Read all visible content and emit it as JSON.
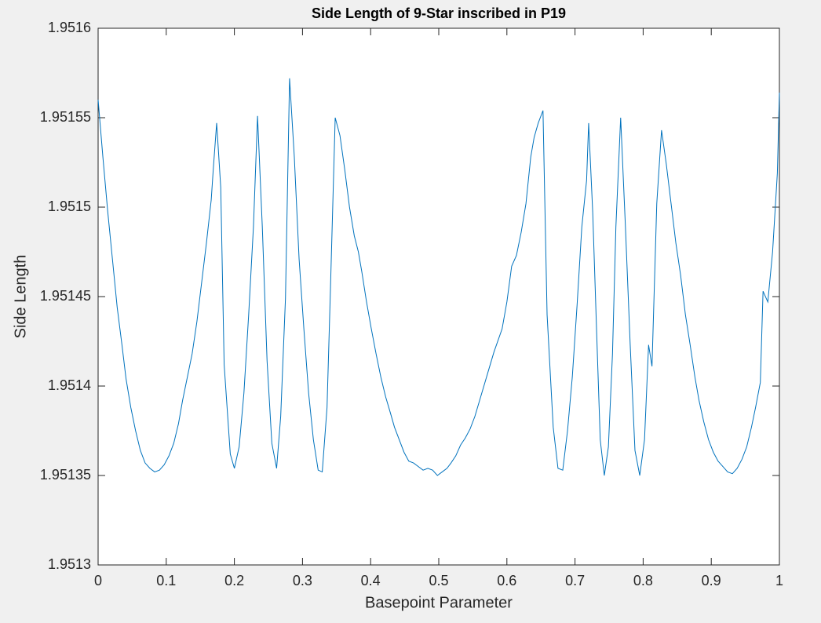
{
  "chart_data": {
    "type": "line",
    "title": "Side Length of 9-Star inscribed in P19",
    "xlabel": "Basepoint Parameter",
    "ylabel": "Side Length",
    "color": "#0072bd",
    "xlim": [
      0,
      1
    ],
    "ylim": [
      1.9513,
      1.9516
    ],
    "xticks": [
      0,
      0.1,
      0.2,
      0.3,
      0.4,
      0.5,
      0.6,
      0.7,
      0.8,
      0.9,
      1
    ],
    "yticks": [
      1.9513,
      1.95135,
      1.9514,
      1.95145,
      1.9515,
      1.95155,
      1.9516
    ],
    "grid": false,
    "x": [
      0,
      0.007,
      0.014,
      0.021,
      0.028,
      0.035,
      0.041,
      0.048,
      0.055,
      0.062,
      0.069,
      0.076,
      0.083,
      0.09,
      0.097,
      0.104,
      0.111,
      0.118,
      0.124,
      0.131,
      0.138,
      0.145,
      0.152,
      0.159,
      0.166,
      0.169,
      0.174,
      0.18,
      0.185,
      0.194,
      0.2,
      0.207,
      0.214,
      0.221,
      0.228,
      0.234,
      0.241,
      0.248,
      0.255,
      0.262,
      0.268,
      0.275,
      0.281,
      0.288,
      0.295,
      0.302,
      0.309,
      0.316,
      0.323,
      0.329,
      0.336,
      0.341,
      0.348,
      0.355,
      0.362,
      0.369,
      0.376,
      0.382,
      0.387,
      0.394,
      0.401,
      0.408,
      0.415,
      0.422,
      0.429,
      0.435,
      0.442,
      0.449,
      0.456,
      0.463,
      0.47,
      0.477,
      0.484,
      0.491,
      0.498,
      0.505,
      0.512,
      0.518,
      0.525,
      0.532,
      0.539,
      0.546,
      0.553,
      0.56,
      0.567,
      0.574,
      0.581,
      0.593,
      0.6,
      0.607,
      0.614,
      0.621,
      0.628,
      0.635,
      0.64,
      0.646,
      0.653,
      0.659,
      0.668,
      0.675,
      0.682,
      0.689,
      0.696,
      0.703,
      0.71,
      0.717,
      0.72,
      0.726,
      0.732,
      0.737,
      0.743,
      0.749,
      0.755,
      0.76,
      0.767,
      0.774,
      0.781,
      0.788,
      0.795,
      0.802,
      0.808,
      0.813,
      0.82,
      0.827,
      0.834,
      0.841,
      0.848,
      0.855,
      0.862,
      0.869,
      0.876,
      0.882,
      0.889,
      0.896,
      0.903,
      0.91,
      0.917,
      0.924,
      0.931,
      0.938,
      0.945,
      0.952,
      0.959,
      0.965,
      0.972,
      0.976,
      0.983,
      0.99,
      0.997,
      1
    ],
    "values": [
      1.95156,
      1.951528,
      1.951498,
      1.951471,
      1.951444,
      1.951423,
      1.951404,
      1.951388,
      1.951375,
      1.951364,
      1.951357,
      1.951354,
      1.951352,
      1.951353,
      1.951356,
      1.951361,
      1.951368,
      1.951379,
      1.951392,
      1.951405,
      1.951418,
      1.951436,
      1.951458,
      1.95148,
      1.951504,
      1.951521,
      1.951547,
      1.951511,
      1.951412,
      1.951362,
      1.951354,
      1.951366,
      1.951396,
      1.95144,
      1.951489,
      1.951551,
      1.951489,
      1.951414,
      1.951368,
      1.951354,
      1.951383,
      1.951449,
      1.951572,
      1.951528,
      1.951471,
      1.951432,
      1.951396,
      1.95137,
      1.951353,
      1.951352,
      1.951388,
      1.951454,
      1.95155,
      1.95154,
      1.951521,
      1.9515,
      1.951484,
      1.951475,
      1.951464,
      1.951447,
      1.951432,
      1.951418,
      1.951405,
      1.951394,
      1.951385,
      1.951377,
      1.95137,
      1.951363,
      1.951358,
      1.951357,
      1.951355,
      1.951353,
      1.951354,
      1.951353,
      1.95135,
      1.951352,
      1.951354,
      1.951357,
      1.951361,
      1.951367,
      1.951371,
      1.951376,
      1.951383,
      1.951392,
      1.951401,
      1.95141,
      1.951419,
      1.951432,
      1.951447,
      1.951467,
      1.951473,
      1.951486,
      1.951502,
      1.951528,
      1.951539,
      1.951547,
      1.951554,
      1.95144,
      1.951377,
      1.951354,
      1.951353,
      1.951375,
      1.951405,
      1.951445,
      1.951489,
      1.951515,
      1.951547,
      1.951497,
      1.951427,
      1.95137,
      1.95135,
      1.951366,
      1.951418,
      1.951489,
      1.95155,
      1.951489,
      1.951423,
      1.951364,
      1.95135,
      1.95137,
      1.951423,
      1.951411,
      1.951502,
      1.951543,
      1.951524,
      1.951502,
      1.95148,
      1.951462,
      1.95144,
      1.951423,
      1.951405,
      1.951392,
      1.95138,
      1.95137,
      1.951363,
      1.951358,
      1.951355,
      1.951352,
      1.951351,
      1.951354,
      1.951359,
      1.951366,
      1.951377,
      1.951388,
      1.951402,
      1.951453,
      1.951447,
      1.951475,
      1.951519,
      1.951564
    ]
  }
}
